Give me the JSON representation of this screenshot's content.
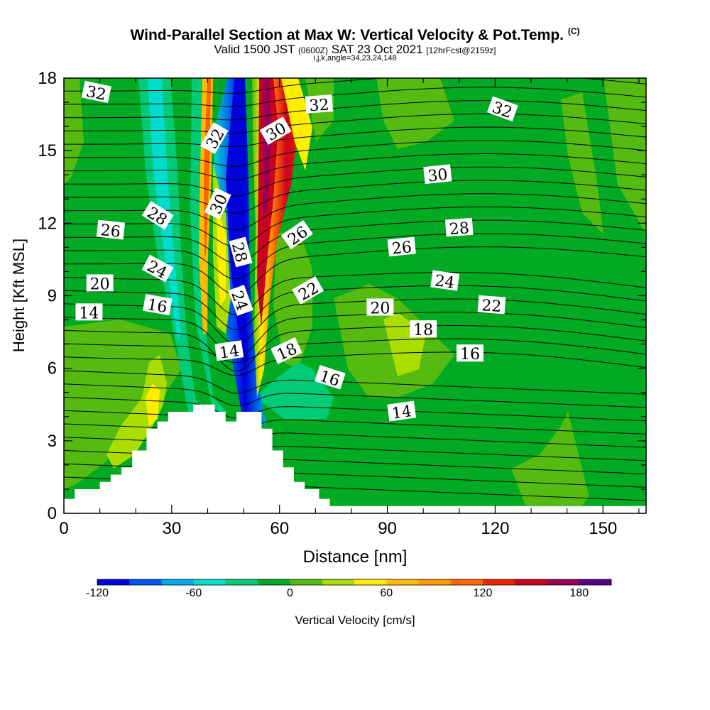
{
  "title": {
    "main": "Wind-Parallel Section at Max W: Vertical Velocity & Pot.Temp.",
    "copyright": "(C)",
    "valid_prefix": "Valid 1500 JST",
    "valid_z": "(0600Z)",
    "valid_date": "SAT 23 Oct 2021",
    "forecast": "[12hrFcst@2159z]",
    "indices": "i,j,k,angle=34,23,24,148"
  },
  "chart_data": {
    "type": "contour",
    "xlabel": "Distance [nm]",
    "ylabel": "Height [Kft MSL]",
    "xlim": [
      0,
      162
    ],
    "ylim": [
      0,
      18
    ],
    "x_ticks": [
      0,
      30,
      60,
      90,
      120,
      150
    ],
    "y_ticks": [
      0,
      3,
      6,
      9,
      12,
      15,
      18
    ],
    "grid": false,
    "colorbar": {
      "label": "Vertical Velocity [cm/s]",
      "ticks": [
        -120,
        -60,
        0,
        60,
        120,
        180
      ],
      "range": [
        -120,
        200
      ],
      "colors": [
        "#0000dd",
        "#0055ee",
        "#00aaee",
        "#00ddcc",
        "#00cc77",
        "#00aa22",
        "#55bb11",
        "#aadd00",
        "#ffee00",
        "#ffbb00",
        "#ff9900",
        "#ff6600",
        "#ee2200",
        "#cc0022",
        "#990055",
        "#550088"
      ]
    },
    "terrain_profile": [
      [
        0,
        0.6
      ],
      [
        3,
        0.6
      ],
      [
        3,
        1.0
      ],
      [
        10,
        1.0
      ],
      [
        10,
        1.3
      ],
      [
        13,
        1.3
      ],
      [
        13,
        1.6
      ],
      [
        16,
        1.6
      ],
      [
        16,
        1.9
      ],
      [
        19,
        1.9
      ],
      [
        19,
        2.6
      ],
      [
        23,
        2.6
      ],
      [
        23,
        3.5
      ],
      [
        26,
        3.5
      ],
      [
        26,
        3.8
      ],
      [
        29,
        3.8
      ],
      [
        29,
        4.2
      ],
      [
        36,
        4.2
      ],
      [
        36,
        4.5
      ],
      [
        42,
        4.5
      ],
      [
        42,
        4.2
      ],
      [
        45,
        4.2
      ],
      [
        45,
        3.8
      ],
      [
        48,
        3.8
      ],
      [
        48,
        4.2
      ],
      [
        55,
        4.2
      ],
      [
        55,
        3.5
      ],
      [
        58,
        3.5
      ],
      [
        58,
        2.6
      ],
      [
        61,
        2.6
      ],
      [
        61,
        1.9
      ],
      [
        64,
        1.9
      ],
      [
        64,
        1.3
      ],
      [
        67,
        1.3
      ],
      [
        67,
        1.0
      ],
      [
        71,
        1.0
      ],
      [
        71,
        0.6
      ],
      [
        74,
        0.6
      ],
      [
        74,
        0.3
      ],
      [
        162,
        0.3
      ]
    ],
    "theta_labels": [
      {
        "text": "32",
        "x": 9,
        "y": 17.4,
        "angle": 12
      },
      {
        "text": "32",
        "x": 71,
        "y": 16.9,
        "angle": -4
      },
      {
        "text": "32",
        "x": 122,
        "y": 16.7,
        "angle": 20
      },
      {
        "text": "32",
        "x": 42,
        "y": 15.5,
        "angle": -60
      },
      {
        "text": "30",
        "x": 59,
        "y": 15.8,
        "angle": -30
      },
      {
        "text": "30",
        "x": 104,
        "y": 14.0,
        "angle": -6
      },
      {
        "text": "30",
        "x": 43,
        "y": 12.8,
        "angle": -65
      },
      {
        "text": "28",
        "x": 26,
        "y": 12.3,
        "angle": 32
      },
      {
        "text": "28",
        "x": 110,
        "y": 11.8,
        "angle": -4
      },
      {
        "text": "28",
        "x": 49,
        "y": 10.8,
        "angle": 75
      },
      {
        "text": "26",
        "x": 13,
        "y": 11.7,
        "angle": 6
      },
      {
        "text": "26",
        "x": 65,
        "y": 11.5,
        "angle": -35
      },
      {
        "text": "26",
        "x": 94,
        "y": 11.0,
        "angle": -6
      },
      {
        "text": "24",
        "x": 26,
        "y": 10.1,
        "angle": 28
      },
      {
        "text": "24",
        "x": 106,
        "y": 9.6,
        "angle": 8
      },
      {
        "text": "24",
        "x": 49,
        "y": 8.8,
        "angle": 70
      },
      {
        "text": "22",
        "x": 68,
        "y": 9.2,
        "angle": -30
      },
      {
        "text": "22",
        "x": 119,
        "y": 8.6,
        "angle": 4
      },
      {
        "text": "20",
        "x": 10,
        "y": 9.5,
        "angle": 0
      },
      {
        "text": "20",
        "x": 88,
        "y": 8.5,
        "angle": 0
      },
      {
        "text": "18",
        "x": 100,
        "y": 7.6,
        "angle": 0
      },
      {
        "text": "18",
        "x": 62,
        "y": 6.7,
        "angle": -25
      },
      {
        "text": "16",
        "x": 26,
        "y": 8.6,
        "angle": 10
      },
      {
        "text": "16",
        "x": 113,
        "y": 6.6,
        "angle": 0
      },
      {
        "text": "16",
        "x": 74,
        "y": 5.6,
        "angle": 18
      },
      {
        "text": "14",
        "x": 7,
        "y": 8.3,
        "angle": 0
      },
      {
        "text": "14",
        "x": 46,
        "y": 6.7,
        "angle": -8
      },
      {
        "text": "14",
        "x": 94,
        "y": 4.2,
        "angle": -8
      }
    ]
  }
}
